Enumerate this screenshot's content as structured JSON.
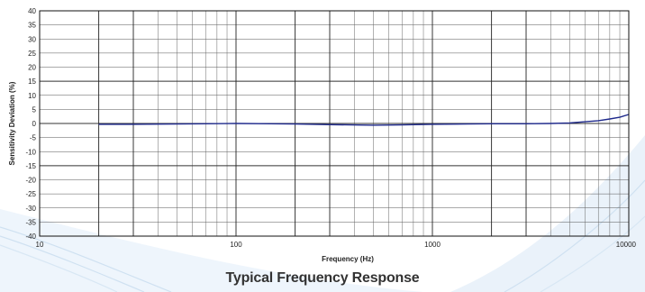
{
  "caption": "Typical Frequency Response",
  "chart_data": {
    "type": "line",
    "xlabel": "Frequency (Hz)",
    "ylabel": "Sensitivity Deviation (%)",
    "x_scale": "log",
    "xlim": [
      10,
      10000
    ],
    "ylim": [
      -40,
      40
    ],
    "x_tick_labels": [
      "10",
      "100",
      "1000",
      "10000"
    ],
    "y_ticks": [
      40,
      35,
      30,
      25,
      20,
      15,
      10,
      5,
      0,
      -5,
      -10,
      -15,
      -20,
      -25,
      -30,
      -35,
      -40
    ],
    "grid": true,
    "series": [
      {
        "color": "#1f2a8c",
        "x": [
          20,
          30,
          50,
          70,
          100,
          150,
          200,
          300,
          500,
          700,
          1000,
          1500,
          2000,
          3000,
          4000,
          5000,
          6000,
          7000,
          8000,
          9000,
          10000
        ],
        "y": [
          -0.3,
          -0.3,
          -0.2,
          -0.1,
          0,
          -0.1,
          -0.2,
          -0.4,
          -0.6,
          -0.5,
          -0.3,
          -0.2,
          -0.1,
          -0.1,
          0,
          0.2,
          0.6,
          1.0,
          1.6,
          2.2,
          3.2
        ]
      }
    ]
  }
}
